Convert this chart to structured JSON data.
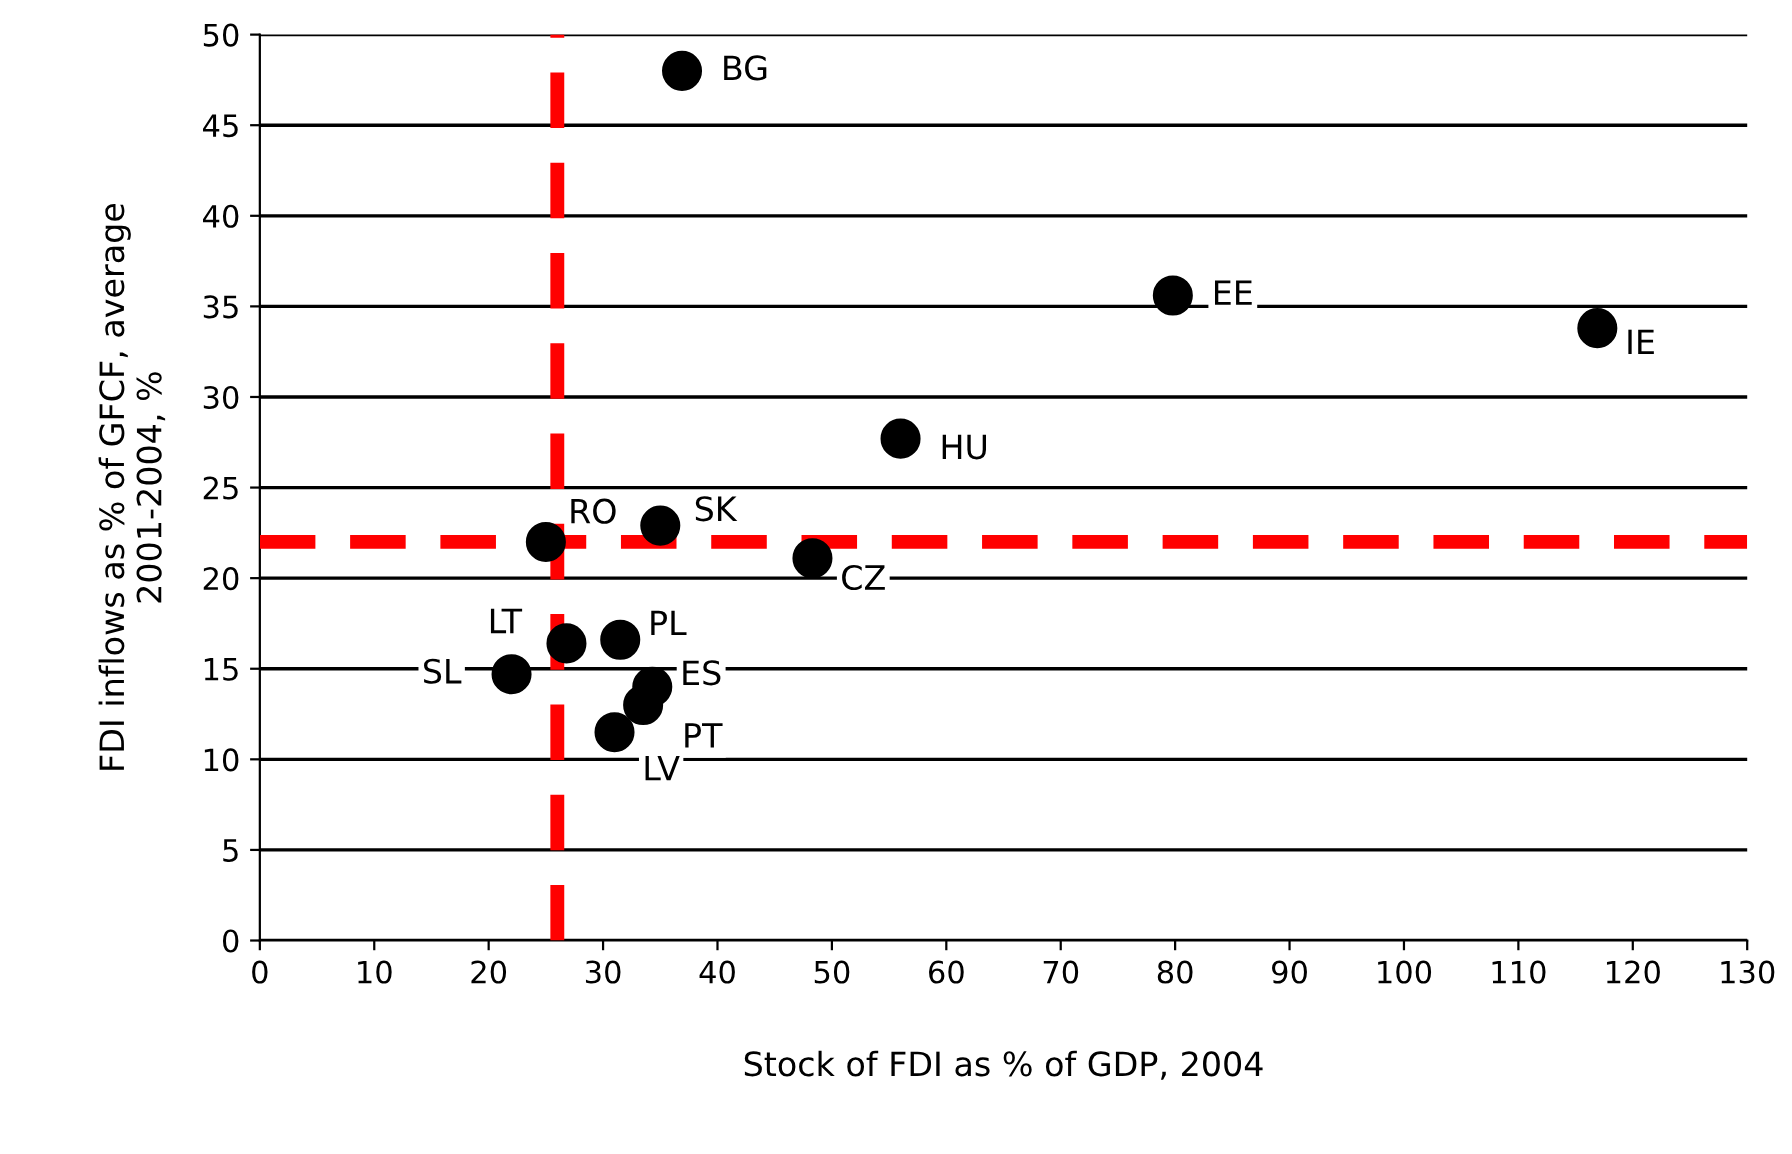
{
  "chart_data": {
    "type": "scatter",
    "xlabel": "Stock of FDI as % of GDP, 2004",
    "ylabel": "FDI inflows as % of GFCF, average\n2001-2004, %",
    "x": [
      36.9,
      79.8,
      116.9,
      56,
      35,
      25,
      48.3,
      26.8,
      31.5,
      22,
      34.3,
      33.5,
      31
    ],
    "series": [
      {
        "color": "#000000",
        "values": [
          48,
          35.6,
          33.8,
          27.7,
          22.9,
          22,
          21.1,
          16.4,
          16.6,
          14.7,
          14,
          13,
          11.5
        ]
      }
    ],
    "annotations": [
      {
        "text": "BG",
        "x": 36.9,
        "y": 48
      },
      {
        "text": "EE",
        "x": 79.8,
        "y": 35.6
      },
      {
        "text": "IE",
        "x": 116.9,
        "y": 33.8
      },
      {
        "text": "HU",
        "x": 56,
        "y": 27.7
      },
      {
        "text": "SK",
        "x": 35,
        "y": 22.9
      },
      {
        "text": "RO",
        "x": 25,
        "y": 22
      },
      {
        "text": "CZ",
        "x": 48.3,
        "y": 21.1
      },
      {
        "text": "LT",
        "x": 26.8,
        "y": 16.4
      },
      {
        "text": "PL",
        "x": 31.5,
        "y": 16.6
      },
      {
        "text": "SL",
        "x": 22,
        "y": 14.7
      },
      {
        "text": "ES",
        "x": 34.3,
        "y": 14
      },
      {
        "text": "PT",
        "x": 33.5,
        "y": 13
      },
      {
        "text": "LV",
        "x": 31,
        "y": 11.5
      }
    ],
    "ref_lines": [
      {
        "axis": "x",
        "value": 26,
        "color": "#ff0000",
        "line_style": "dashed"
      },
      {
        "axis": "y",
        "value": 22,
        "color": "#ff0000",
        "line_style": "dashed"
      }
    ],
    "xlim": [
      0,
      130
    ],
    "xticks": [
      0,
      10,
      20,
      30,
      40,
      50,
      60,
      70,
      80,
      90,
      100,
      110,
      120,
      130
    ],
    "ylim": [
      0,
      50
    ],
    "yticks": [
      0,
      5,
      10,
      15,
      20,
      25,
      30,
      35,
      40,
      45,
      50
    ],
    "grid": "y",
    "marker": "circle"
  }
}
